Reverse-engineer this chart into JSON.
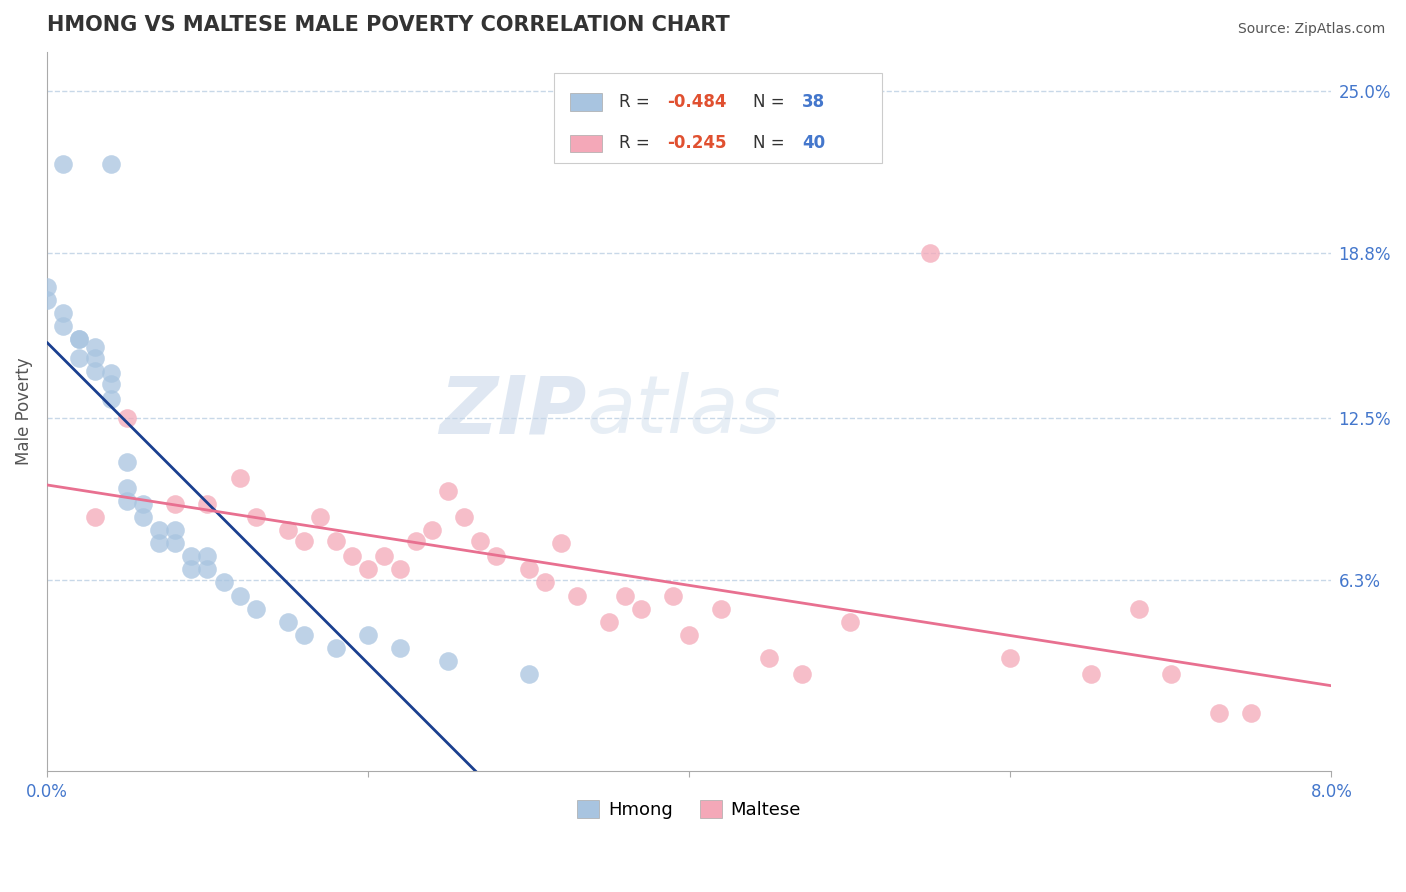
{
  "title": "HMONG VS MALTESE MALE POVERTY CORRELATION CHART",
  "source": "Source: ZipAtlas.com",
  "ylabel": "Male Poverty",
  "xlim": [
    0.0,
    0.08
  ],
  "ylim": [
    -0.01,
    0.265
  ],
  "xtick_labels": [
    "0.0%",
    "",
    "",
    "",
    "8.0%"
  ],
  "xtick_values": [
    0.0,
    0.02,
    0.04,
    0.06,
    0.08
  ],
  "ytick_labels": [
    "6.3%",
    "12.5%",
    "18.8%",
    "25.0%"
  ],
  "ytick_values": [
    0.063,
    0.125,
    0.188,
    0.25
  ],
  "hmong_color": "#a8c4e0",
  "maltese_color": "#f4a8b8",
  "hmong_line_color": "#1a3f8f",
  "maltese_line_color": "#e87090",
  "hmong_R": -0.484,
  "hmong_N": 38,
  "maltese_R": -0.245,
  "maltese_N": 40,
  "hmong_scatter_x": [
    0.001,
    0.004,
    0.0,
    0.0,
    0.001,
    0.001,
    0.002,
    0.002,
    0.002,
    0.003,
    0.003,
    0.003,
    0.004,
    0.004,
    0.004,
    0.005,
    0.005,
    0.005,
    0.006,
    0.006,
    0.007,
    0.007,
    0.008,
    0.008,
    0.009,
    0.009,
    0.01,
    0.01,
    0.011,
    0.012,
    0.013,
    0.015,
    0.016,
    0.018,
    0.02,
    0.022,
    0.025,
    0.03
  ],
  "hmong_scatter_y": [
    0.222,
    0.222,
    0.17,
    0.175,
    0.165,
    0.16,
    0.155,
    0.148,
    0.155,
    0.148,
    0.143,
    0.152,
    0.138,
    0.132,
    0.142,
    0.108,
    0.098,
    0.093,
    0.092,
    0.087,
    0.082,
    0.077,
    0.082,
    0.077,
    0.072,
    0.067,
    0.072,
    0.067,
    0.062,
    0.057,
    0.052,
    0.047,
    0.042,
    0.037,
    0.042,
    0.037,
    0.032,
    0.027
  ],
  "maltese_scatter_x": [
    0.003,
    0.005,
    0.008,
    0.01,
    0.012,
    0.013,
    0.015,
    0.016,
    0.017,
    0.018,
    0.019,
    0.02,
    0.021,
    0.022,
    0.023,
    0.024,
    0.025,
    0.026,
    0.027,
    0.028,
    0.03,
    0.031,
    0.032,
    0.033,
    0.035,
    0.036,
    0.037,
    0.039,
    0.04,
    0.042,
    0.045,
    0.047,
    0.05,
    0.055,
    0.06,
    0.065,
    0.068,
    0.07,
    0.073,
    0.075
  ],
  "maltese_scatter_y": [
    0.087,
    0.125,
    0.092,
    0.092,
    0.102,
    0.087,
    0.082,
    0.078,
    0.087,
    0.078,
    0.072,
    0.067,
    0.072,
    0.067,
    0.078,
    0.082,
    0.097,
    0.087,
    0.078,
    0.072,
    0.067,
    0.062,
    0.077,
    0.057,
    0.047,
    0.057,
    0.052,
    0.057,
    0.042,
    0.052,
    0.033,
    0.027,
    0.047,
    0.188,
    0.033,
    0.027,
    0.052,
    0.027,
    0.012,
    0.012
  ],
  "watermark_zip": "ZIP",
  "watermark_atlas": "atlas",
  "background_color": "#ffffff",
  "grid_color": "#c8d8e8",
  "title_color": "#333333",
  "legend_R_color": "#e05030",
  "legend_N_color": "#4477cc",
  "legend_text_color": "#333333"
}
